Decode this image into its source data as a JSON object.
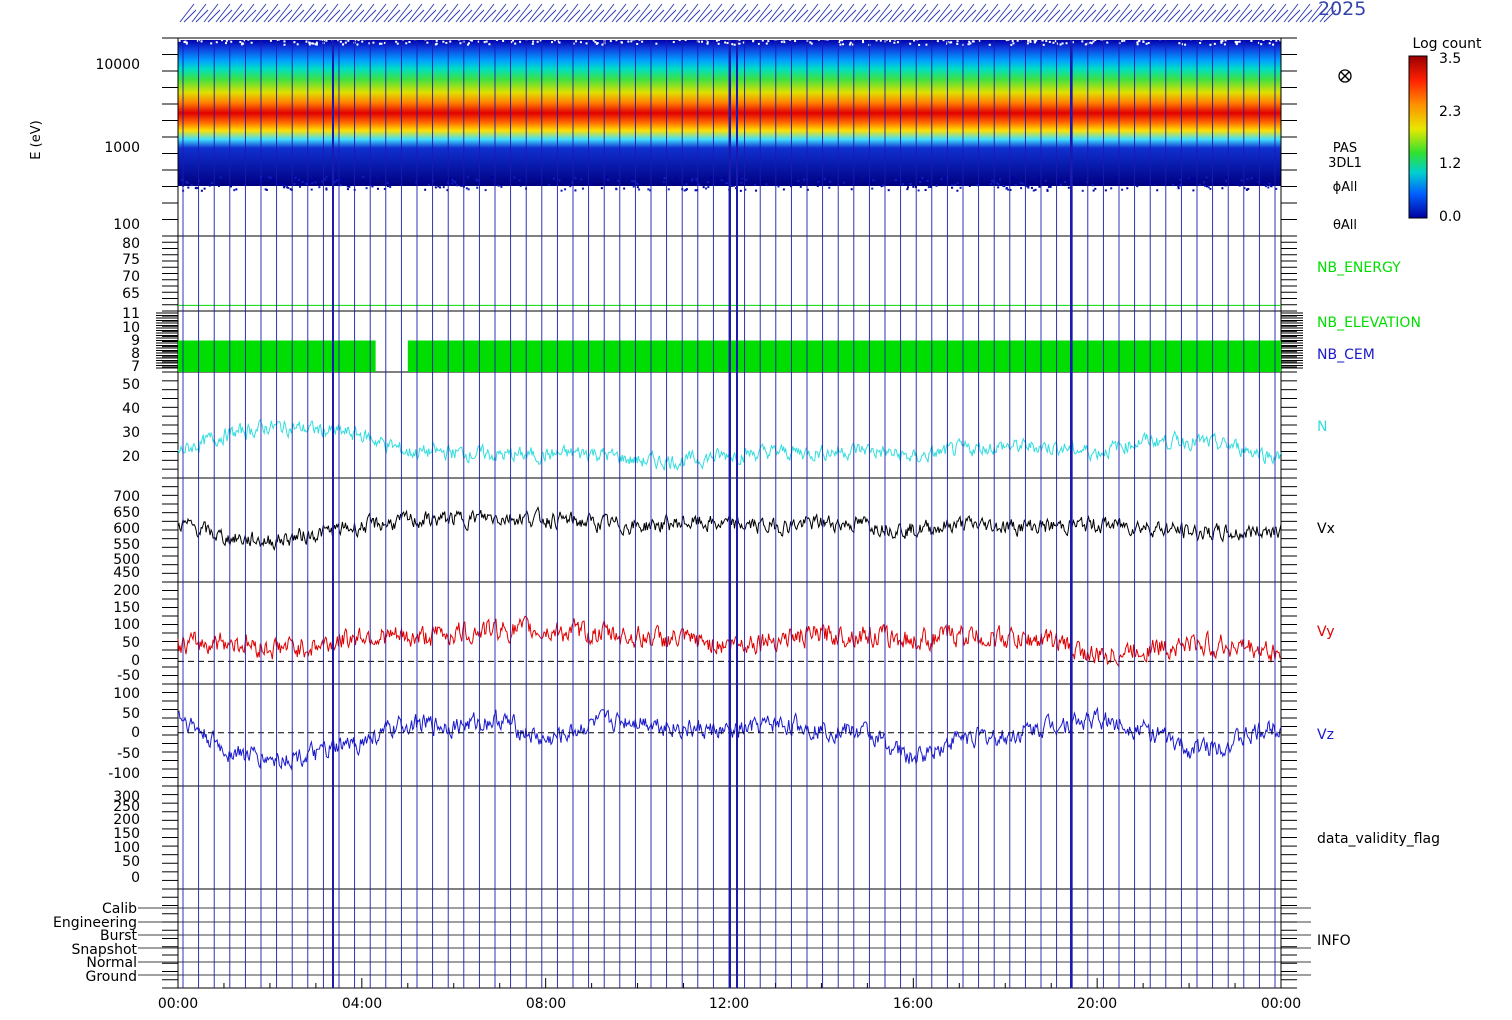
{
  "header": {
    "partial_text": "2025"
  },
  "colorbar": {
    "title": "Log count",
    "ticks": [
      "3.5",
      "2.3",
      "1.2",
      "0.0"
    ]
  },
  "x_axis": {
    "tick_labels": [
      "00:00",
      "04:00",
      "08:00",
      "12:00",
      "16:00",
      "20:00",
      "00:00"
    ]
  },
  "panels": [
    {
      "id": "spectrogram",
      "ylabel": "E (eV)",
      "yticks": [
        "10000",
        "1000",
        "100"
      ],
      "labels": [
        "PAS",
        "3DL1",
        "ϕAll",
        "θAll"
      ],
      "label_color": "#000000",
      "right_icon": "otimes-icon"
    },
    {
      "id": "nb_energy",
      "yticks": [
        "80",
        "75",
        "70",
        "65"
      ],
      "labels": [
        "NB_ENERGY"
      ],
      "label_color": "#00dd00"
    },
    {
      "id": "nb_elev",
      "yticks": [
        "11",
        "10",
        "9",
        "8",
        "7"
      ],
      "labels": [
        "NB_ELEVATION",
        "NB_CEM"
      ],
      "label_colors": [
        "#00dd00",
        "#1a1acc"
      ]
    },
    {
      "id": "density",
      "yticks": [
        "50",
        "40",
        "30",
        "20"
      ],
      "labels": [
        "N"
      ],
      "label_color": "#33dddd"
    },
    {
      "id": "vx",
      "yticks": [
        "700",
        "650",
        "600",
        "550",
        "500",
        "450"
      ],
      "labels": [
        "Vx"
      ],
      "label_color": "#000000"
    },
    {
      "id": "vy",
      "yticks": [
        "200",
        "150",
        "100",
        "50",
        "0",
        "-50"
      ],
      "labels": [
        "Vy"
      ],
      "label_color": "#e00000"
    },
    {
      "id": "vz",
      "yticks": [
        "100",
        "50",
        "0",
        "-50",
        "-100"
      ],
      "labels": [
        "Vz"
      ],
      "label_color": "#1a1acc"
    },
    {
      "id": "validity",
      "yticks": [
        "300",
        "250",
        "200",
        "150",
        "100",
        "50",
        "0"
      ],
      "labels": [
        "data_validity_flag"
      ],
      "label_color": "#000000"
    },
    {
      "id": "info",
      "yticks": [
        "Calib",
        "Engineering",
        "Burst",
        "Snapshot",
        "Normal",
        "Ground"
      ],
      "labels": [
        "INFO"
      ],
      "label_color": "#000000"
    }
  ],
  "chart_data": {
    "type": "line",
    "title": "",
    "x_unit": "hours (UT)",
    "xlim": [
      0,
      24
    ],
    "spectrogram": {
      "ylim_eV": [
        100,
        20000
      ],
      "peak_band_eV": [
        1200,
        3000
      ],
      "colorbar_range_log_count": [
        0.0,
        3.5
      ]
    },
    "series": [
      {
        "name": "NB_ENERGY",
        "ylim": [
          62,
          82
        ],
        "x": [
          0,
          24
        ],
        "values": [
          63.5,
          63.5
        ],
        "color": "#00dd00"
      },
      {
        "name": "NB_ELEVATION",
        "ylim": [
          7,
          11
        ],
        "x": [
          0,
          4.3,
          4.3,
          5.0,
          5.0,
          24
        ],
        "values": [
          9,
          9,
          null,
          null,
          9,
          9
        ],
        "color": "#00dd00"
      },
      {
        "name": "N",
        "ylim": [
          15,
          52
        ],
        "x": [
          0,
          1,
          2,
          3,
          4,
          5,
          6,
          7,
          8,
          9,
          10,
          11,
          12,
          13,
          14,
          15,
          16,
          17,
          18,
          19,
          20,
          21,
          22,
          23,
          24
        ],
        "values": [
          24,
          30,
          33,
          32,
          30,
          24,
          24,
          23,
          23,
          24,
          21,
          21,
          23,
          24,
          24,
          25,
          22,
          25,
          26,
          26,
          24,
          28,
          28,
          26,
          22
        ],
        "color": "#33dddd"
      },
      {
        "name": "Vx",
        "ylim": [
          440,
          720
        ],
        "x": [
          0,
          1,
          2,
          3,
          4,
          5,
          6,
          7,
          8,
          9,
          10,
          11,
          12,
          13,
          14,
          15,
          16,
          17,
          18,
          19,
          20,
          21,
          22,
          23,
          24
        ],
        "values": [
          600,
          560,
          550,
          570,
          590,
          605,
          610,
          615,
          610,
          600,
          590,
          600,
          595,
          590,
          600,
          595,
          580,
          595,
          590,
          590,
          595,
          590,
          575,
          570,
          585
        ],
        "color": "#000000"
      },
      {
        "name": "Vy",
        "ylim": [
          -60,
          210
        ],
        "x": [
          0,
          1,
          2,
          3,
          4,
          5,
          6,
          7,
          8,
          9,
          10,
          11,
          12,
          13,
          14,
          15,
          16,
          17,
          18,
          19,
          20,
          21,
          22,
          23,
          24
        ],
        "values": [
          40,
          55,
          35,
          40,
          70,
          60,
          75,
          85,
          80,
          75,
          65,
          55,
          45,
          60,
          70,
          70,
          55,
          70,
          60,
          55,
          10,
          35,
          45,
          40,
          20
        ],
        "color": "#e00000"
      },
      {
        "name": "Vz",
        "ylim": [
          -120,
          110
        ],
        "x": [
          0,
          1,
          2,
          3,
          4,
          5,
          6,
          7,
          8,
          9,
          10,
          11,
          12,
          13,
          14,
          15,
          16,
          17,
          18,
          19,
          20,
          21,
          22,
          23,
          24
        ],
        "values": [
          40,
          -40,
          -60,
          -50,
          -20,
          20,
          15,
          30,
          -20,
          20,
          30,
          10,
          0,
          20,
          10,
          0,
          -60,
          -10,
          -10,
          20,
          30,
          10,
          -40,
          -20,
          20
        ],
        "color": "#1a1acc"
      }
    ]
  }
}
